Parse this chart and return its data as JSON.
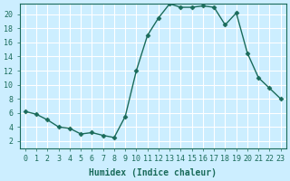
{
  "x": [
    0,
    1,
    2,
    3,
    4,
    5,
    6,
    7,
    8,
    9,
    10,
    11,
    12,
    13,
    14,
    15,
    16,
    17,
    18,
    19,
    20,
    21,
    22,
    23
  ],
  "y": [
    6.2,
    5.8,
    5.0,
    4.0,
    3.8,
    3.0,
    3.2,
    2.8,
    2.5,
    5.5,
    12.0,
    17.0,
    19.5,
    21.5,
    21.0,
    21.0,
    21.2,
    21.0,
    18.5,
    20.2,
    14.5,
    11.0,
    9.5,
    8.0
  ],
  "line_color": "#1a6b5a",
  "marker": "D",
  "marker_size": 2.5,
  "bg_color": "#cceeff",
  "grid_color": "#ffffff",
  "xlabel": "Humidex (Indice chaleur)",
  "xlim": [
    -0.5,
    23.5
  ],
  "ylim": [
    1,
    21.5
  ],
  "yticks": [
    2,
    4,
    6,
    8,
    10,
    12,
    14,
    16,
    18,
    20
  ],
  "xticks": [
    0,
    1,
    2,
    3,
    4,
    5,
    6,
    7,
    8,
    9,
    10,
    11,
    12,
    13,
    14,
    15,
    16,
    17,
    18,
    19,
    20,
    21,
    22,
    23
  ],
  "label_fontsize": 7,
  "tick_fontsize": 6
}
